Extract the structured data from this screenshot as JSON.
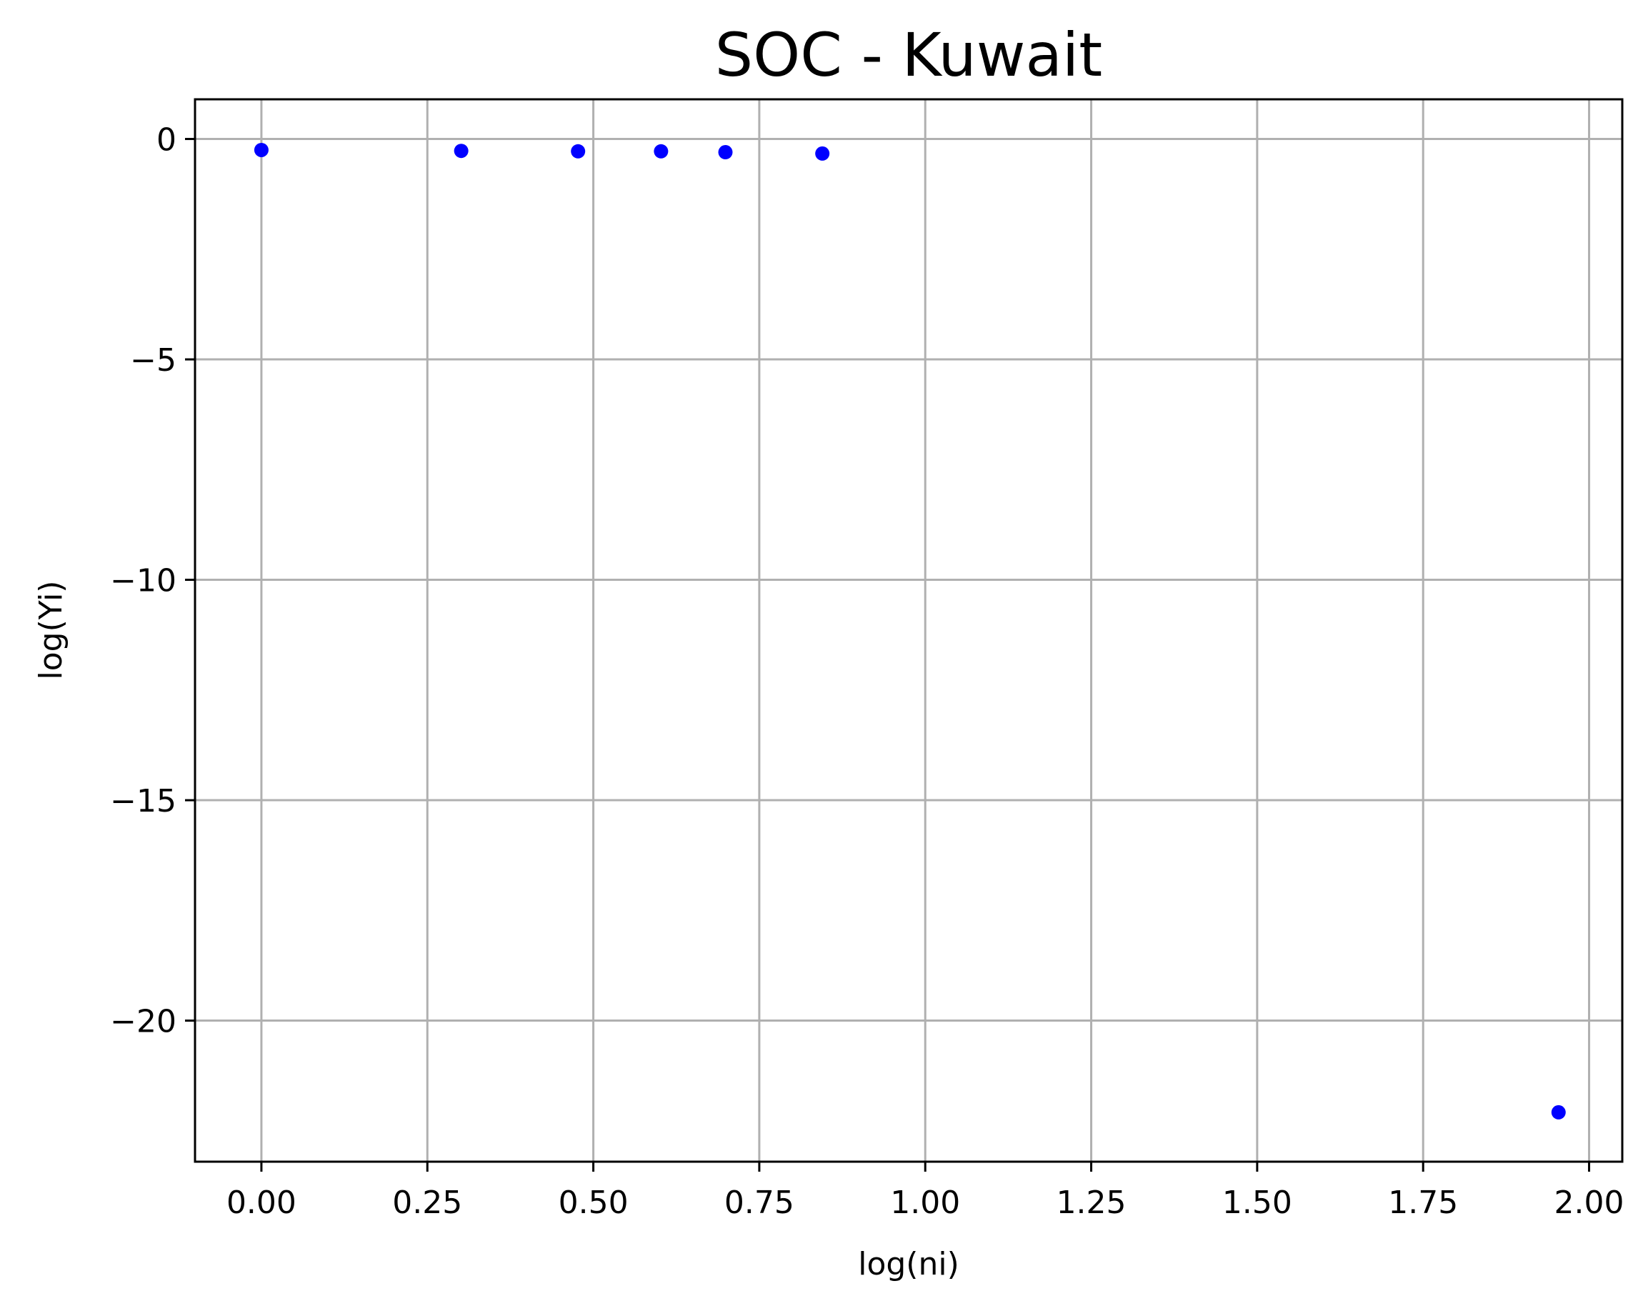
{
  "chart_data": {
    "type": "scatter",
    "title": "SOC - Kuwait",
    "xlabel": "log(ni)",
    "ylabel": "log(Yi)",
    "xlim": [
      -0.1,
      2.05
    ],
    "ylim": [
      -23.2,
      0.9
    ],
    "grid": true,
    "marker_color": "#0000ff",
    "xticks": [
      0.0,
      0.25,
      0.5,
      0.75,
      1.0,
      1.25,
      1.5,
      1.75,
      2.0
    ],
    "xtick_labels": [
      "0.00",
      "0.25",
      "0.50",
      "0.75",
      "1.00",
      "1.25",
      "1.50",
      "1.75",
      "2.00"
    ],
    "yticks": [
      0,
      -5,
      -10,
      -15,
      -20
    ],
    "ytick_labels": [
      "0",
      "−5",
      "−10",
      "−15",
      "−20"
    ],
    "points": [
      {
        "x": 0.0,
        "y": -0.25
      },
      {
        "x": 0.301,
        "y": -0.27
      },
      {
        "x": 0.477,
        "y": -0.28
      },
      {
        "x": 0.602,
        "y": -0.28
      },
      {
        "x": 0.699,
        "y": -0.3
      },
      {
        "x": 0.845,
        "y": -0.33
      },
      {
        "x": 1.954,
        "y": -22.08
      }
    ]
  }
}
